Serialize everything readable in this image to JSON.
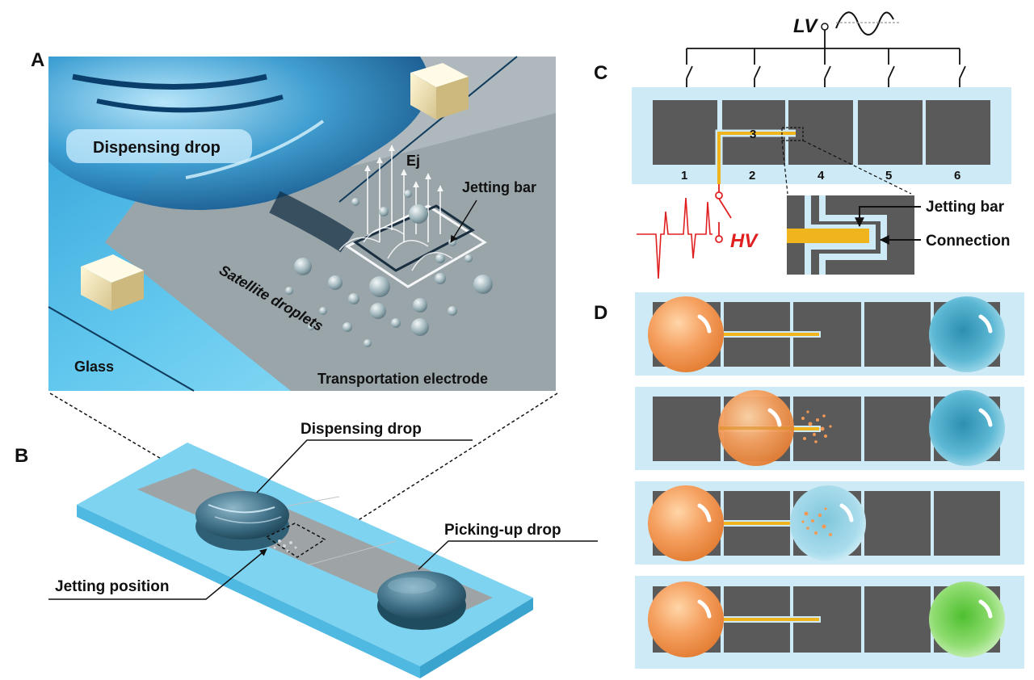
{
  "panels": {
    "a": {
      "letter": "A",
      "dispensing_drop": "Dispensing drop",
      "ej": "Ej",
      "jetting_bar": "Jetting bar",
      "satellite_droplets": "Satellite droplets",
      "glass": "Glass",
      "transportation_electrode": "Transportation electrode"
    },
    "b": {
      "letter": "B",
      "dispensing_drop": "Dispensing drop",
      "picking_up_drop": "Picking-up drop",
      "jetting_position": "Jetting position"
    },
    "c": {
      "letter": "C",
      "lv": "LV",
      "hv": "HV",
      "electrode_numbers": [
        "1",
        "2",
        "3",
        "4",
        "5",
        "6"
      ],
      "jetting_bar": "Jetting bar",
      "connection": "Connection"
    },
    "d": {
      "letter": "D"
    }
  },
  "colors": {
    "electrode": "#5a5a5a",
    "substrate": "#cdeaf6",
    "jetting_bar": "#f0b51c",
    "hv_signal": "#e02020",
    "orange_drop": "#f29a55",
    "blue_drop": "#3fa7c6",
    "green_drop": "#6fcf50"
  }
}
